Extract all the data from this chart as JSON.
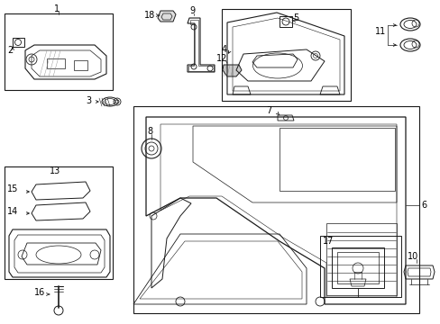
{
  "bg_color": "#ffffff",
  "line_color": "#1a1a1a",
  "label_color": "#000000",
  "fig_width": 4.89,
  "fig_height": 3.6,
  "dpi": 100
}
